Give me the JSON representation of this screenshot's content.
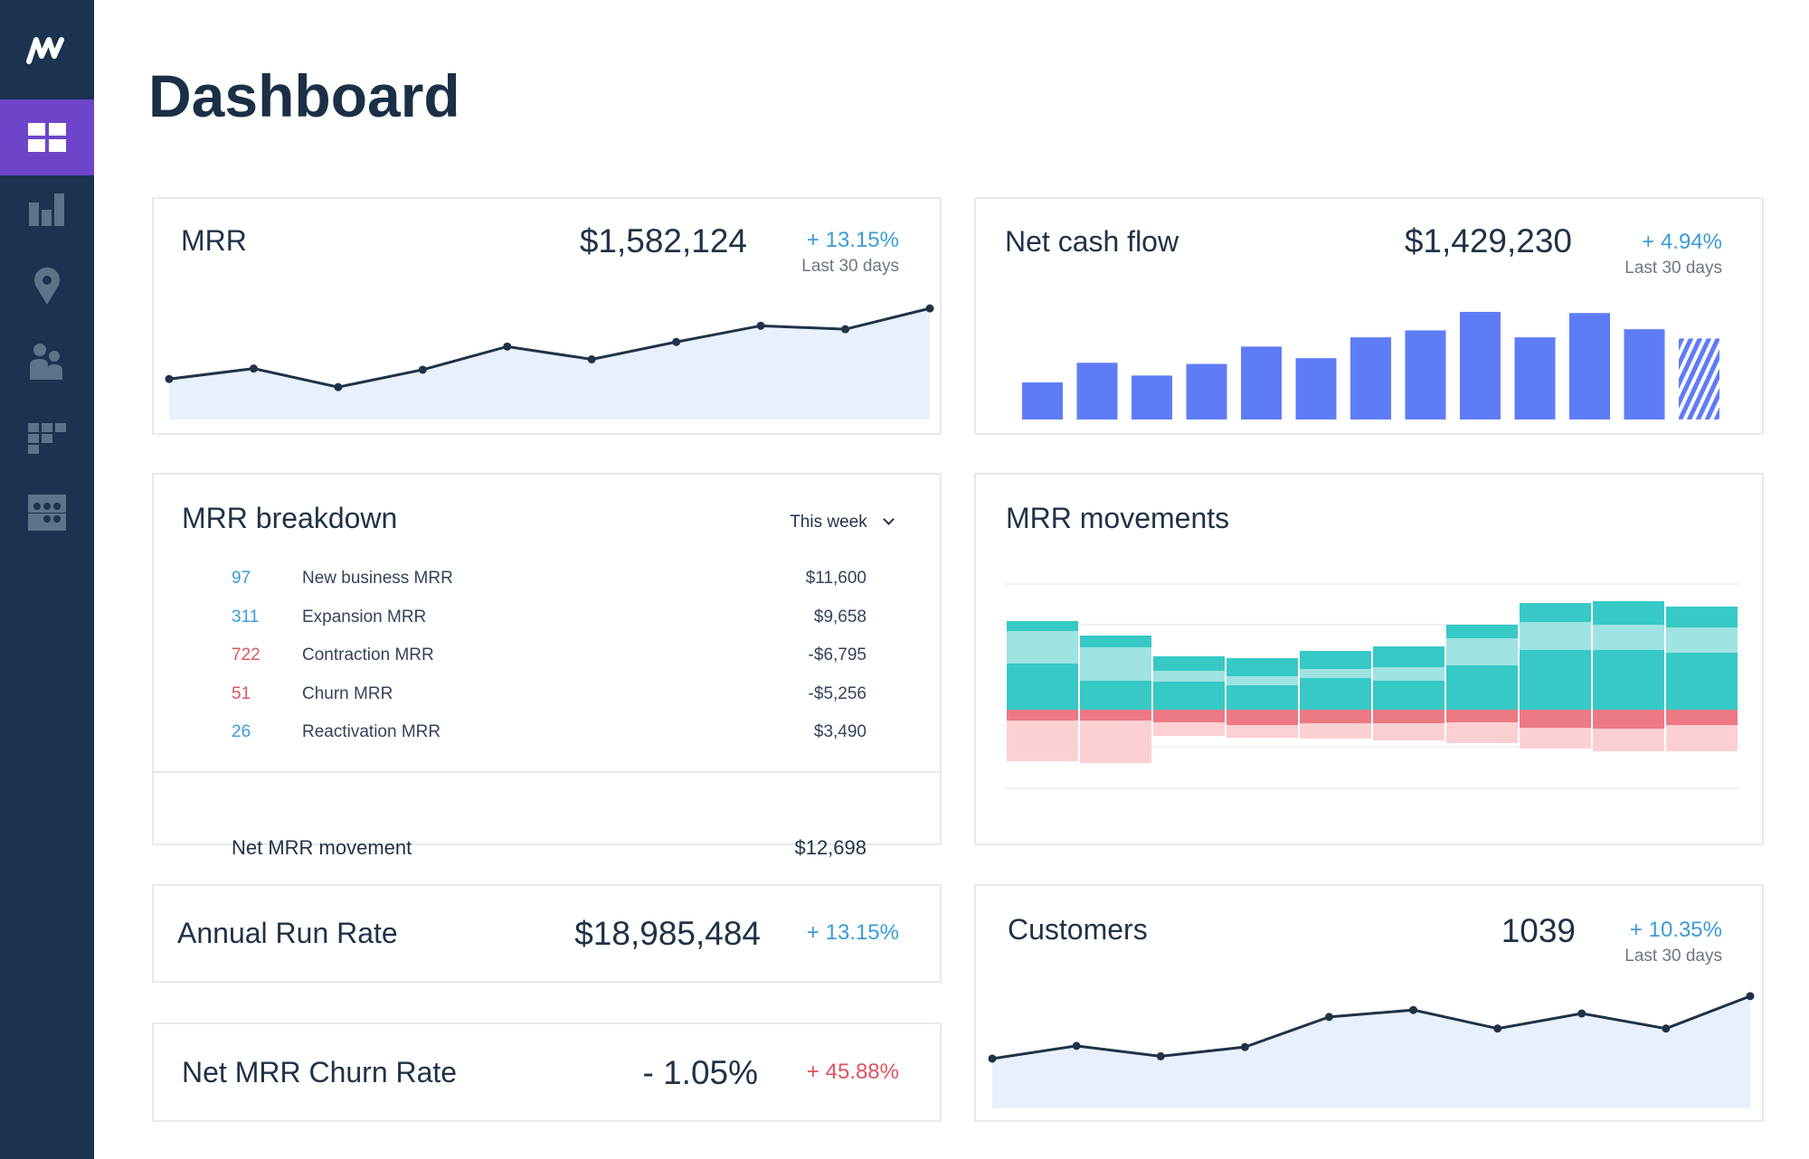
{
  "page": {
    "title": "Dashboard"
  },
  "colors": {
    "sidebar": "#1b3350",
    "active": "#6e45c9",
    "positive": "#3b9bd6",
    "negative": "#e0535f",
    "bar": "#5f7cf7",
    "area": "#e8effd",
    "line": "#1f3247",
    "teal_dark": "#36c9c6",
    "teal_light": "#9fe3e2",
    "red": "#ec7983",
    "pink": "#fcd0d3"
  },
  "sidebar": {
    "logo": "M",
    "items": [
      {
        "icon": "dashboard-grid-icon",
        "active": true
      },
      {
        "icon": "bar-chart-icon"
      },
      {
        "icon": "map-pin-icon"
      },
      {
        "icon": "users-icon"
      },
      {
        "icon": "segments-icon"
      },
      {
        "icon": "table-icon"
      }
    ]
  },
  "mrr": {
    "title": "MRR",
    "value": "$1,582,124",
    "change": "+ 13.15%",
    "period": "Last 30 days"
  },
  "cash": {
    "title": "Net cash flow",
    "value": "$1,429,230",
    "change": "+ 4.94%",
    "period": "Last 30 days"
  },
  "breakdown": {
    "title": "MRR breakdown",
    "dropdown": "This week",
    "rows": [
      {
        "count": "97",
        "label": "New business MRR",
        "value": "$11,600",
        "tone": "positive"
      },
      {
        "count": "311",
        "label": "Expansion MRR",
        "value": "$9,658",
        "tone": "positive"
      },
      {
        "count": "722",
        "label": "Contraction MRR",
        "value": "-$6,795",
        "tone": "negative"
      },
      {
        "count": "51",
        "label": "Churn MRR",
        "value": "-$5,256",
        "tone": "negative"
      },
      {
        "count": "26",
        "label": "Reactivation MRR",
        "value": "$3,490",
        "tone": "positive"
      }
    ],
    "net_label": "Net MRR movement",
    "net_value": "$12,698"
  },
  "movements": {
    "title": "MRR movements"
  },
  "arr": {
    "title": "Annual Run Rate",
    "value": "$18,985,484",
    "change": "+ 13.15%"
  },
  "churn": {
    "title": "Net MRR Churn Rate",
    "value": "- 1.05%",
    "change": "+ 45.88%"
  },
  "customers": {
    "title": "Customers",
    "value": "1039",
    "change": "+ 10.35%",
    "period": "Last 30 days"
  },
  "chart_data": [
    {
      "type": "area",
      "id": "mrr",
      "values": [
        35,
        44,
        28,
        43,
        63,
        52,
        67,
        81,
        78,
        96
      ],
      "ylim": [
        0,
        100
      ]
    },
    {
      "type": "bar",
      "id": "cash",
      "values": [
        32,
        49,
        38,
        48,
        63,
        53,
        71,
        77,
        93,
        71,
        92,
        78,
        70
      ],
      "projected_last": true,
      "ylim": [
        0,
        100
      ]
    },
    {
      "type": "bar",
      "id": "movements",
      "stacked": true,
      "series": [
        {
          "values": [
            51,
            32,
            31,
            27,
            35,
            32,
            49,
            66,
            66,
            63
          ],
          "color": "#36c9c6"
        },
        {
          "values": [
            36,
            37,
            12,
            10,
            10,
            15,
            30,
            31,
            28,
            28
          ],
          "color": "#9fe3e2"
        },
        {
          "values": [
            11,
            13,
            16,
            20,
            20,
            23,
            15,
            21,
            26,
            23
          ],
          "color": "#36c9c6"
        },
        {
          "values": [
            -12,
            -12,
            -14,
            -17,
            -15,
            -15,
            -14,
            -20,
            -21,
            -17
          ],
          "color": "#ec7983"
        },
        {
          "values": [
            -45,
            -47,
            -15,
            -14,
            -17,
            -19,
            -23,
            -23,
            -25,
            -29
          ],
          "color": "#fcd0d3"
        }
      ]
    },
    {
      "type": "area",
      "id": "customers",
      "values": [
        43,
        54,
        45,
        53,
        79,
        85,
        69,
        82,
        69,
        97
      ],
      "ylim": [
        0,
        100
      ]
    }
  ]
}
